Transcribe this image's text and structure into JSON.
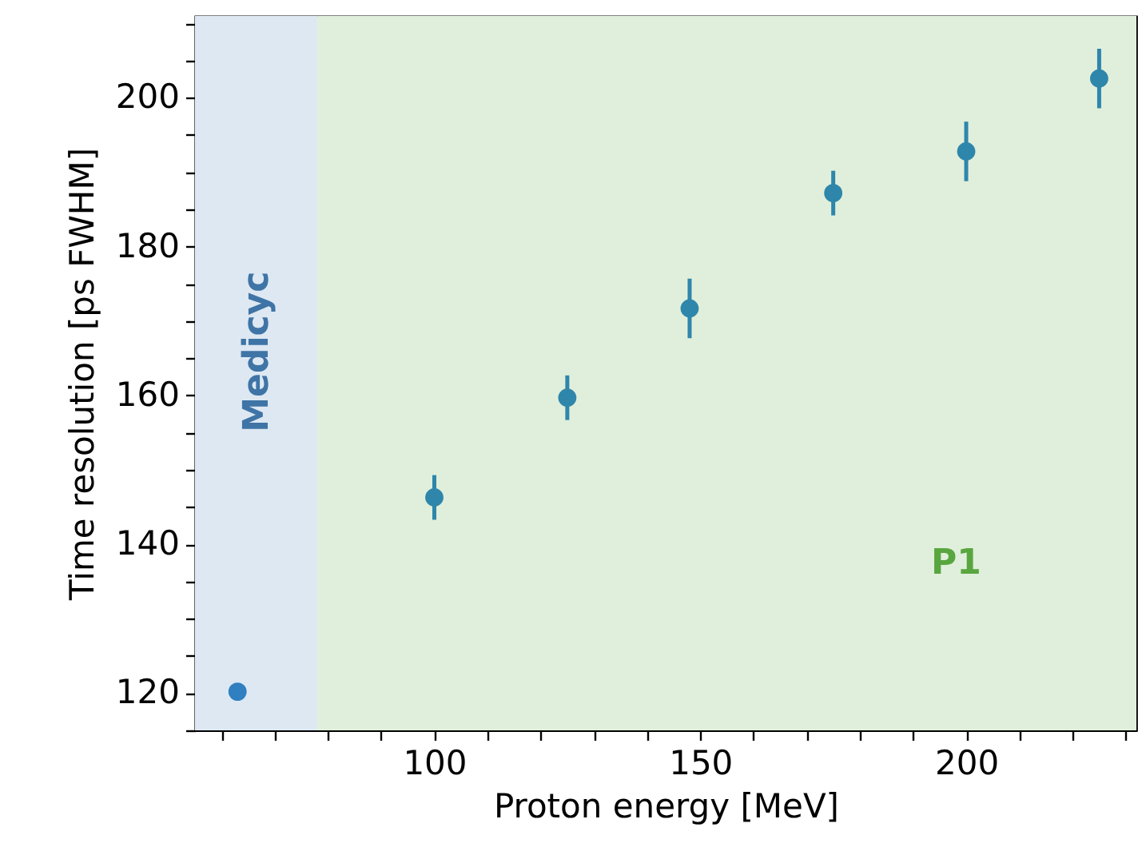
{
  "chart_data": {
    "type": "scatter",
    "xlabel": "Proton energy [MeV]",
    "ylabel": "Time resolution [ps FWHM]",
    "x": [
      63,
      100,
      125,
      148,
      175,
      200,
      225
    ],
    "values": [
      120.2,
      146.3,
      159.7,
      171.7,
      187.2,
      192.8,
      202.6
    ],
    "errors": [
      null,
      3,
      3,
      4,
      3,
      4,
      4
    ],
    "colors": [
      "#2f7fc1",
      "#2e86ab",
      "#2e86ab",
      "#2e86ab",
      "#2e86ab",
      "#2e86ab",
      "#2e86ab"
    ],
    "marker": "circle",
    "grid": false,
    "xlim": [
      55,
      232
    ],
    "ylim": [
      115,
      211
    ],
    "xticks": [
      {
        "value": 60,
        "label": null
      },
      {
        "value": 70,
        "label": null
      },
      {
        "value": 80,
        "label": null
      },
      {
        "value": 90,
        "label": null
      },
      100,
      {
        "value": 110,
        "label": null
      },
      {
        "value": 120,
        "label": null
      },
      {
        "value": 130,
        "label": null
      },
      {
        "value": 140,
        "label": null
      },
      150,
      {
        "value": 160,
        "label": null
      },
      {
        "value": 170,
        "label": null
      },
      {
        "value": 180,
        "label": null
      },
      {
        "value": 190,
        "label": null
      },
      200,
      {
        "value": 210,
        "label": null
      },
      {
        "value": 220,
        "label": null
      },
      {
        "value": 230,
        "label": null
      }
    ],
    "yticks": [
      {
        "value": 115,
        "label": null
      },
      120,
      {
        "value": 125,
        "label": null
      },
      {
        "value": 130,
        "label": null
      },
      {
        "value": 135,
        "label": null
      },
      140,
      {
        "value": 145,
        "label": null
      },
      {
        "value": 150,
        "label": null
      },
      {
        "value": 155,
        "label": null
      },
      160,
      {
        "value": 165,
        "label": null
      },
      {
        "value": 170,
        "label": null
      },
      {
        "value": 175,
        "label": null
      },
      180,
      {
        "value": 185,
        "label": null
      },
      {
        "value": 190,
        "label": null
      },
      {
        "value": 195,
        "label": null
      },
      200,
      {
        "value": 205,
        "label": null
      },
      {
        "value": 210,
        "label": null
      }
    ],
    "bands": [
      {
        "axis": "x",
        "from": 55,
        "to": 78,
        "label": "Medicyc",
        "color": "#dde8f2"
      },
      {
        "axis": "x",
        "from": 78,
        "to": 232,
        "label": "P1",
        "color": "#e0efdb"
      }
    ]
  }
}
